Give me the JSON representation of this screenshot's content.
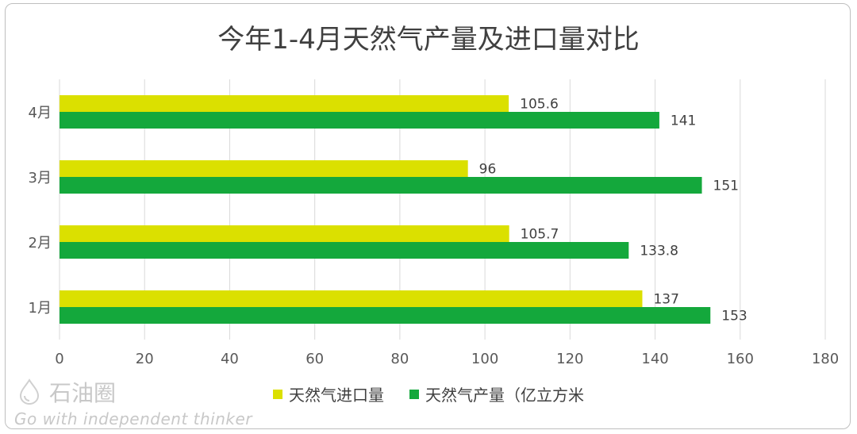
{
  "chart_data": {
    "type": "bar",
    "orientation": "horizontal",
    "title": "今年1-4月天然气产量及进口量对比",
    "categories": [
      "1月",
      "2月",
      "3月",
      "4月"
    ],
    "series": [
      {
        "name": "天然气进口量",
        "values": [
          137,
          105.7,
          96,
          105.6
        ],
        "labels": [
          "137",
          "105.7",
          "96",
          "105.6"
        ],
        "color": "#dbe000"
      },
      {
        "name": "天然气产量（亿立方米",
        "values": [
          153,
          133.8,
          151,
          141
        ],
        "labels": [
          "153",
          "133.8",
          "151",
          "141"
        ],
        "color": "#14a83c"
      }
    ],
    "xlim": [
      0,
      180
    ],
    "x_ticks": [
      "0",
      "20",
      "40",
      "60",
      "80",
      "100",
      "120",
      "140",
      "160",
      "180"
    ],
    "grid": true,
    "legend_position": "bottom"
  },
  "watermark": {
    "brand": "石油圈",
    "slogan": "Go with independent thinker"
  }
}
